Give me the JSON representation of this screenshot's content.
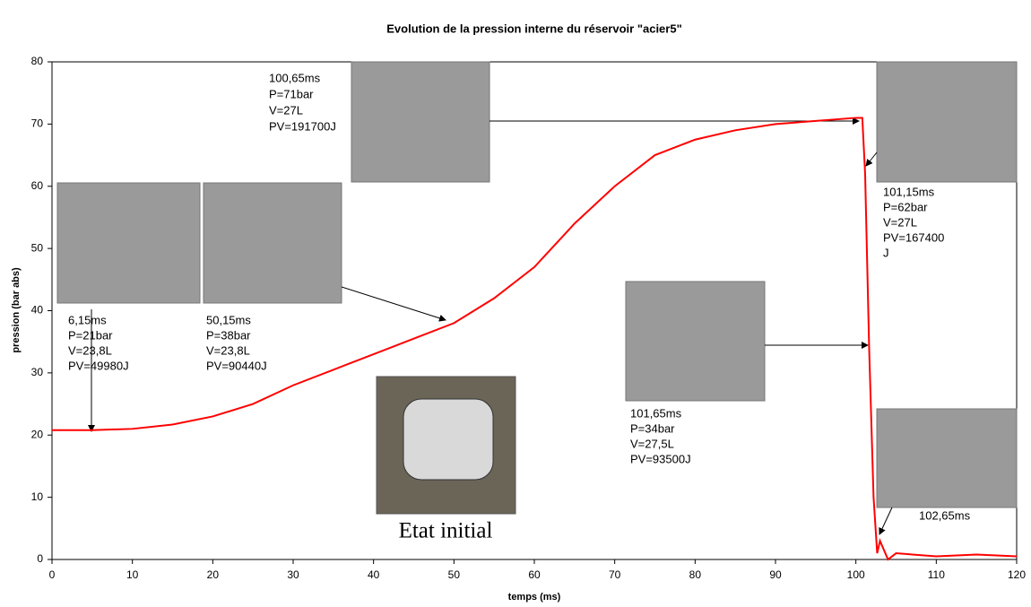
{
  "chart_data": {
    "type": "line",
    "title": "Evolution de la pression interne du  réservoir \"acier5\"",
    "x_label": "temps (ms)",
    "y_label": "pression (bar abs)",
    "x": [
      0,
      5,
      10,
      15,
      20,
      25,
      30,
      35,
      40,
      45,
      50,
      55,
      60,
      65,
      70,
      75,
      80,
      85,
      90,
      95,
      100,
      100.8,
      101.15,
      101.65,
      102.2,
      102.65,
      103,
      104,
      105,
      110,
      115,
      120
    ],
    "series": [
      {
        "name": "pression",
        "color": "#ff0000",
        "values": [
          20.8,
          20.8,
          21,
          21.7,
          23,
          25,
          28,
          30.5,
          33,
          35.5,
          38,
          42,
          47,
          54,
          60,
          65,
          67.5,
          69,
          70,
          70.5,
          71,
          71,
          62,
          34,
          10,
          1,
          3,
          0,
          1,
          0.5,
          0.8,
          0.5
        ]
      }
    ],
    "xlim": [
      0,
      120
    ],
    "ylim": [
      0,
      80
    ],
    "xticks": [
      0,
      10,
      20,
      30,
      40,
      50,
      60,
      70,
      80,
      90,
      100,
      110,
      120
    ],
    "yticks": [
      0,
      10,
      20,
      30,
      40,
      50,
      60,
      70,
      80
    ],
    "grid": false,
    "annotations": [
      {
        "lines": [
          "6,15ms",
          "P=21bar",
          "V=23,8L",
          "PV=49980J"
        ]
      },
      {
        "lines": [
          "50,15ms",
          "P=38bar",
          "V=23,8L",
          "PV=90440J"
        ]
      },
      {
        "lines": [
          "100,65ms",
          "P=71bar",
          "V=27L",
          "PV=191700J"
        ]
      },
      {
        "lines": [
          "101,15ms",
          "P=62bar",
          "V=27L",
          "PV=167400",
          "J"
        ]
      },
      {
        "lines": [
          "101,65ms",
          "P=34bar",
          "V=27,5L",
          "PV=93500J"
        ]
      },
      {
        "lines": [
          "102,65ms"
        ]
      }
    ],
    "caption": "Etat initial"
  }
}
